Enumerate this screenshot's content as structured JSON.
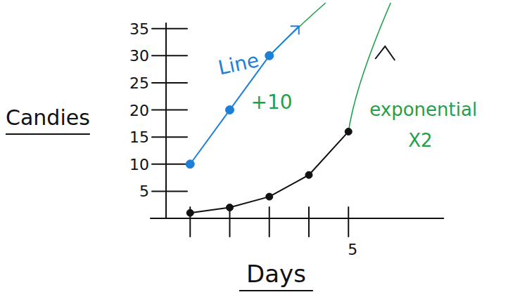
{
  "chart_data": {
    "type": "line",
    "x_label": "Days",
    "y_label": "Candies",
    "xlim": [
      0,
      7.4
    ],
    "ylim": [
      0,
      36
    ],
    "xticks": [
      {
        "value": 1,
        "label": null
      },
      {
        "value": 2,
        "label": null
      },
      {
        "value": 3,
        "label": null
      },
      {
        "value": 4,
        "label": null
      },
      5
    ],
    "yticks": [
      5,
      10,
      15,
      20,
      25,
      30,
      35
    ],
    "series": [
      {
        "name": "Line",
        "color": "#1e7fd8",
        "marker": "circle",
        "x": [
          1,
          2,
          3
        ],
        "values": [
          10,
          20,
          30
        ],
        "annotation": "+10",
        "annotation_color": "#1fa04a"
      },
      {
        "name": "exponential",
        "color": "#111111",
        "name_color": "#1fa04a",
        "marker": "circle",
        "x": [
          1,
          2,
          3,
          4,
          5
        ],
        "values": [
          1,
          2,
          4,
          8,
          16
        ],
        "annotation": "X2",
        "annotation_color": "#1fa04a"
      }
    ]
  }
}
